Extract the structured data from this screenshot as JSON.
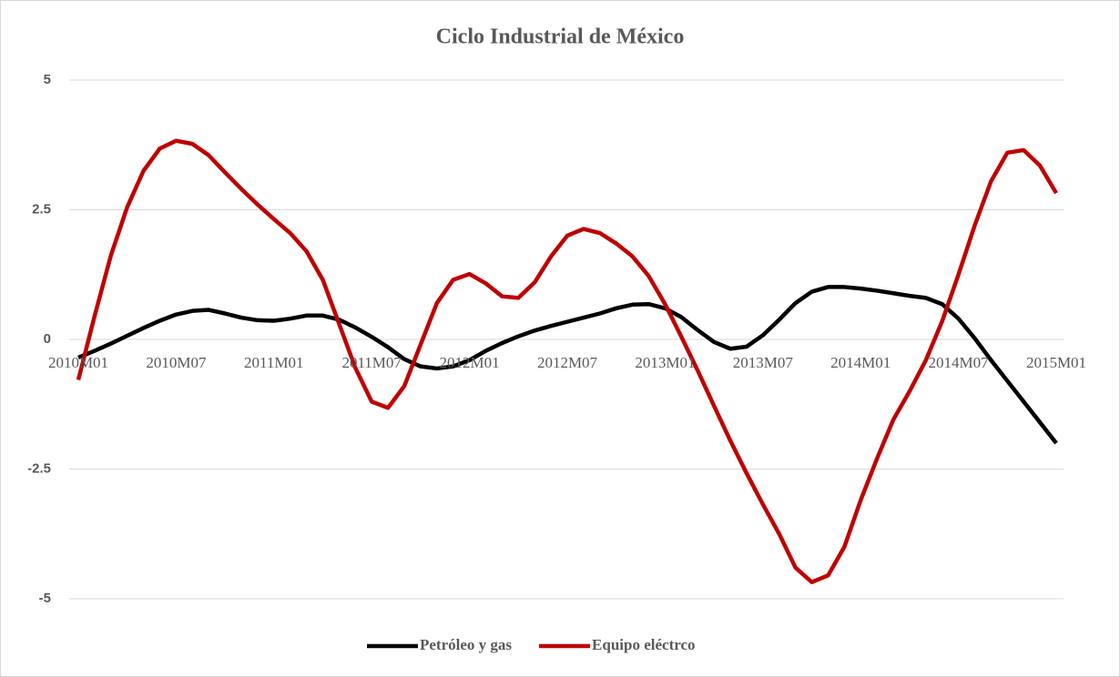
{
  "chart_data": {
    "type": "line",
    "title": "Ciclo Industrial de México",
    "categories": [
      "2010M01",
      null,
      null,
      null,
      null,
      null,
      "2010M07",
      null,
      null,
      null,
      null,
      null,
      "2011M01",
      null,
      null,
      null,
      null,
      null,
      "2011M07",
      null,
      null,
      null,
      null,
      null,
      "2012M01",
      null,
      null,
      null,
      null,
      null,
      "2012M07",
      null,
      null,
      null,
      null,
      null,
      "2013M01",
      null,
      null,
      null,
      null,
      null,
      "2013M07",
      null,
      null,
      null,
      null,
      null,
      "2014M01",
      null,
      null,
      null,
      null,
      null,
      "2014M07",
      null,
      null,
      null,
      null,
      null,
      "2015M01"
    ],
    "series": [
      {
        "name": "Petróleo y gas",
        "color": "#000000",
        "values": [
          -0.35,
          -0.22,
          -0.08,
          0.07,
          0.22,
          0.36,
          0.48,
          0.55,
          0.57,
          0.5,
          0.42,
          0.37,
          0.36,
          0.4,
          0.46,
          0.46,
          0.38,
          0.23,
          0.05,
          -0.15,
          -0.38,
          -0.52,
          -0.56,
          -0.52,
          -0.4,
          -0.22,
          -0.07,
          0.06,
          0.17,
          0.26,
          0.34,
          0.42,
          0.5,
          0.6,
          0.67,
          0.68,
          0.6,
          0.43,
          0.18,
          -0.05,
          -0.18,
          -0.14,
          0.08,
          0.38,
          0.7,
          0.92,
          1.01,
          1.01,
          0.98,
          0.94,
          0.89,
          0.84,
          0.8,
          0.68,
          0.4,
          0.02,
          -0.4,
          -0.8,
          -1.2,
          -1.6,
          -2.0
        ]
      },
      {
        "name": "Equipo eléctrco",
        "color": "#c00000",
        "values": [
          -0.78,
          0.45,
          1.62,
          2.55,
          3.25,
          3.68,
          3.83,
          3.77,
          3.55,
          3.22,
          2.9,
          2.6,
          2.32,
          2.05,
          1.7,
          1.15,
          0.3,
          -0.55,
          -1.2,
          -1.32,
          -0.9,
          -0.1,
          0.7,
          1.15,
          1.26,
          1.08,
          0.83,
          0.8,
          1.1,
          1.6,
          2.0,
          2.13,
          2.05,
          1.85,
          1.6,
          1.22,
          0.68,
          0.05,
          -0.6,
          -1.28,
          -1.95,
          -2.58,
          -3.18,
          -3.75,
          -4.4,
          -4.68,
          -4.55,
          -4.0,
          -3.1,
          -2.3,
          -1.55,
          -1.0,
          -0.4,
          0.35,
          1.25,
          2.2,
          3.05,
          3.6,
          3.65,
          3.35,
          2.82
        ]
      }
    ],
    "ylim": [
      -5,
      5
    ],
    "yticks": [
      5,
      2.5,
      0,
      -2.5,
      -5
    ],
    "grid": true,
    "legend": "bottom"
  }
}
